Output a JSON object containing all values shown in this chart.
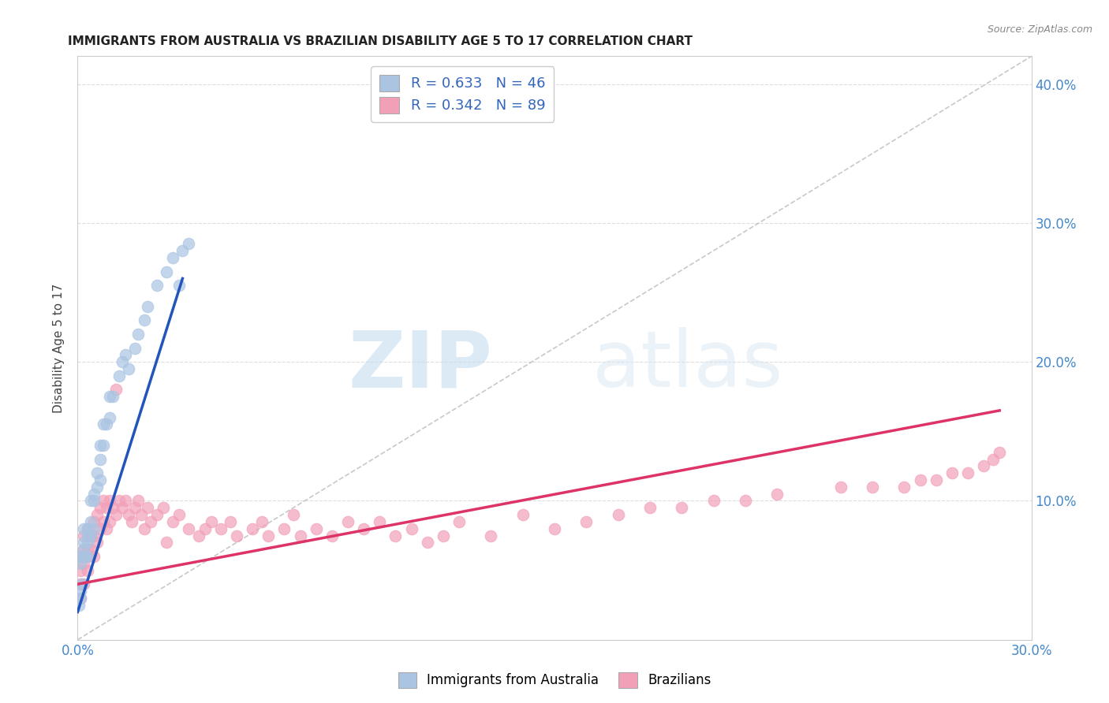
{
  "title": "IMMIGRANTS FROM AUSTRALIA VS BRAZILIAN DISABILITY AGE 5 TO 17 CORRELATION CHART",
  "source": "Source: ZipAtlas.com",
  "ylabel": "Disability Age 5 to 17",
  "xlim": [
    0.0,
    0.3
  ],
  "ylim": [
    0.0,
    0.42
  ],
  "R_australia": 0.633,
  "N_australia": 46,
  "R_brazil": 0.342,
  "N_brazil": 89,
  "color_australia": "#aac4e2",
  "color_brazil": "#f2a0b8",
  "line_color_australia": "#2255bb",
  "line_color_brazil": "#dd3366",
  "diagonal_color": "#bbbbbb",
  "legend_label_australia": "Immigrants from Australia",
  "legend_label_brazil": "Brazilians",
  "aus_x": [
    0.0005,
    0.001,
    0.001,
    0.001,
    0.001,
    0.0015,
    0.002,
    0.002,
    0.002,
    0.002,
    0.0025,
    0.003,
    0.003,
    0.003,
    0.003,
    0.004,
    0.004,
    0.004,
    0.005,
    0.005,
    0.005,
    0.006,
    0.006,
    0.007,
    0.007,
    0.007,
    0.008,
    0.008,
    0.009,
    0.01,
    0.01,
    0.011,
    0.013,
    0.014,
    0.015,
    0.016,
    0.018,
    0.019,
    0.021,
    0.022,
    0.025,
    0.028,
    0.03,
    0.032,
    0.033,
    0.035
  ],
  "aus_y": [
    0.025,
    0.03,
    0.035,
    0.055,
    0.06,
    0.04,
    0.06,
    0.065,
    0.07,
    0.08,
    0.06,
    0.06,
    0.07,
    0.075,
    0.08,
    0.075,
    0.085,
    0.1,
    0.08,
    0.1,
    0.105,
    0.11,
    0.12,
    0.115,
    0.13,
    0.14,
    0.14,
    0.155,
    0.155,
    0.16,
    0.175,
    0.175,
    0.19,
    0.2,
    0.205,
    0.195,
    0.21,
    0.22,
    0.23,
    0.24,
    0.255,
    0.265,
    0.275,
    0.255,
    0.28,
    0.285
  ],
  "bra_x": [
    0.001,
    0.001,
    0.001,
    0.001,
    0.002,
    0.002,
    0.002,
    0.002,
    0.003,
    0.003,
    0.003,
    0.003,
    0.004,
    0.004,
    0.005,
    0.005,
    0.005,
    0.006,
    0.006,
    0.007,
    0.007,
    0.008,
    0.008,
    0.009,
    0.009,
    0.01,
    0.01,
    0.011,
    0.012,
    0.013,
    0.014,
    0.015,
    0.016,
    0.017,
    0.018,
    0.019,
    0.02,
    0.021,
    0.022,
    0.023,
    0.025,
    0.027,
    0.028,
    0.03,
    0.032,
    0.035,
    0.038,
    0.04,
    0.042,
    0.045,
    0.048,
    0.05,
    0.055,
    0.058,
    0.06,
    0.065,
    0.068,
    0.07,
    0.075,
    0.08,
    0.085,
    0.09,
    0.095,
    0.1,
    0.105,
    0.11,
    0.115,
    0.12,
    0.13,
    0.14,
    0.15,
    0.16,
    0.17,
    0.18,
    0.19,
    0.2,
    0.21,
    0.22,
    0.24,
    0.25,
    0.26,
    0.265,
    0.27,
    0.275,
    0.28,
    0.285,
    0.288,
    0.29,
    0.012
  ],
  "bra_y": [
    0.03,
    0.04,
    0.05,
    0.06,
    0.04,
    0.055,
    0.065,
    0.075,
    0.05,
    0.06,
    0.065,
    0.08,
    0.065,
    0.075,
    0.06,
    0.075,
    0.085,
    0.07,
    0.09,
    0.08,
    0.095,
    0.085,
    0.1,
    0.08,
    0.095,
    0.085,
    0.1,
    0.095,
    0.09,
    0.1,
    0.095,
    0.1,
    0.09,
    0.085,
    0.095,
    0.1,
    0.09,
    0.08,
    0.095,
    0.085,
    0.09,
    0.095,
    0.07,
    0.085,
    0.09,
    0.08,
    0.075,
    0.08,
    0.085,
    0.08,
    0.085,
    0.075,
    0.08,
    0.085,
    0.075,
    0.08,
    0.09,
    0.075,
    0.08,
    0.075,
    0.085,
    0.08,
    0.085,
    0.075,
    0.08,
    0.07,
    0.075,
    0.085,
    0.075,
    0.09,
    0.08,
    0.085,
    0.09,
    0.095,
    0.095,
    0.1,
    0.1,
    0.105,
    0.11,
    0.11,
    0.11,
    0.115,
    0.115,
    0.12,
    0.12,
    0.125,
    0.13,
    0.135,
    0.18
  ],
  "watermark_zip": "ZIP",
  "watermark_atlas": "atlas",
  "background_color": "#ffffff",
  "grid_color": "#dddddd",
  "aus_line_x": [
    0.0,
    0.033
  ],
  "aus_line_y": [
    0.02,
    0.26
  ],
  "bra_line_x": [
    0.0,
    0.29
  ],
  "bra_line_y": [
    0.04,
    0.165
  ]
}
